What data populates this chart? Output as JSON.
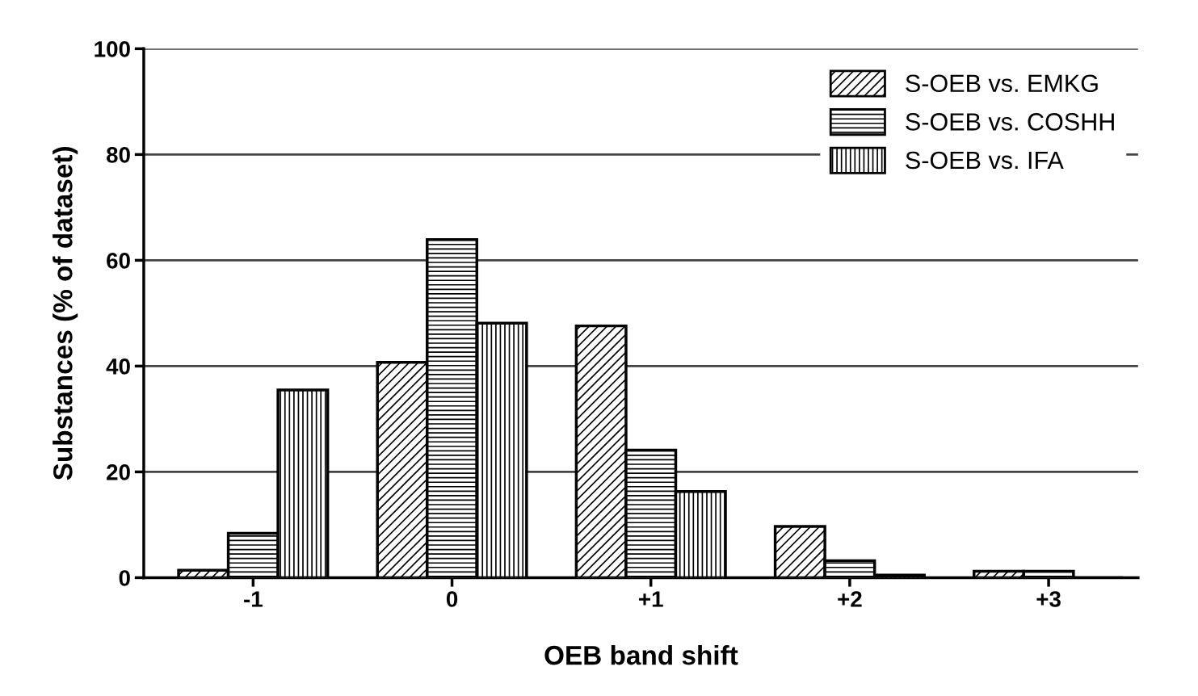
{
  "chart_data": {
    "type": "bar",
    "xlabel": "OEB band shift",
    "ylabel": "Substances (% of dataset)",
    "categories": [
      "-1",
      "0",
      "+1",
      "+2",
      "+3"
    ],
    "series": [
      {
        "name": "S-OEB vs. EMKG",
        "color": "#000000",
        "values": [
          1.4,
          40.7,
          47.6,
          9.7,
          1.2
        ]
      },
      {
        "name": "S-OEB vs. COSHH",
        "color": "#000000",
        "values": [
          8.4,
          63.9,
          24.1,
          3.2,
          1.2
        ]
      },
      {
        "name": "S-OEB vs. IFA",
        "color": "#000000",
        "values": [
          35.5,
          48.1,
          16.3,
          0.5,
          0
        ]
      }
    ],
    "ylim": [
      0,
      100
    ],
    "yticks": [
      0,
      20,
      40,
      60,
      80,
      100
    ],
    "grid": "y",
    "legend": "top right"
  }
}
